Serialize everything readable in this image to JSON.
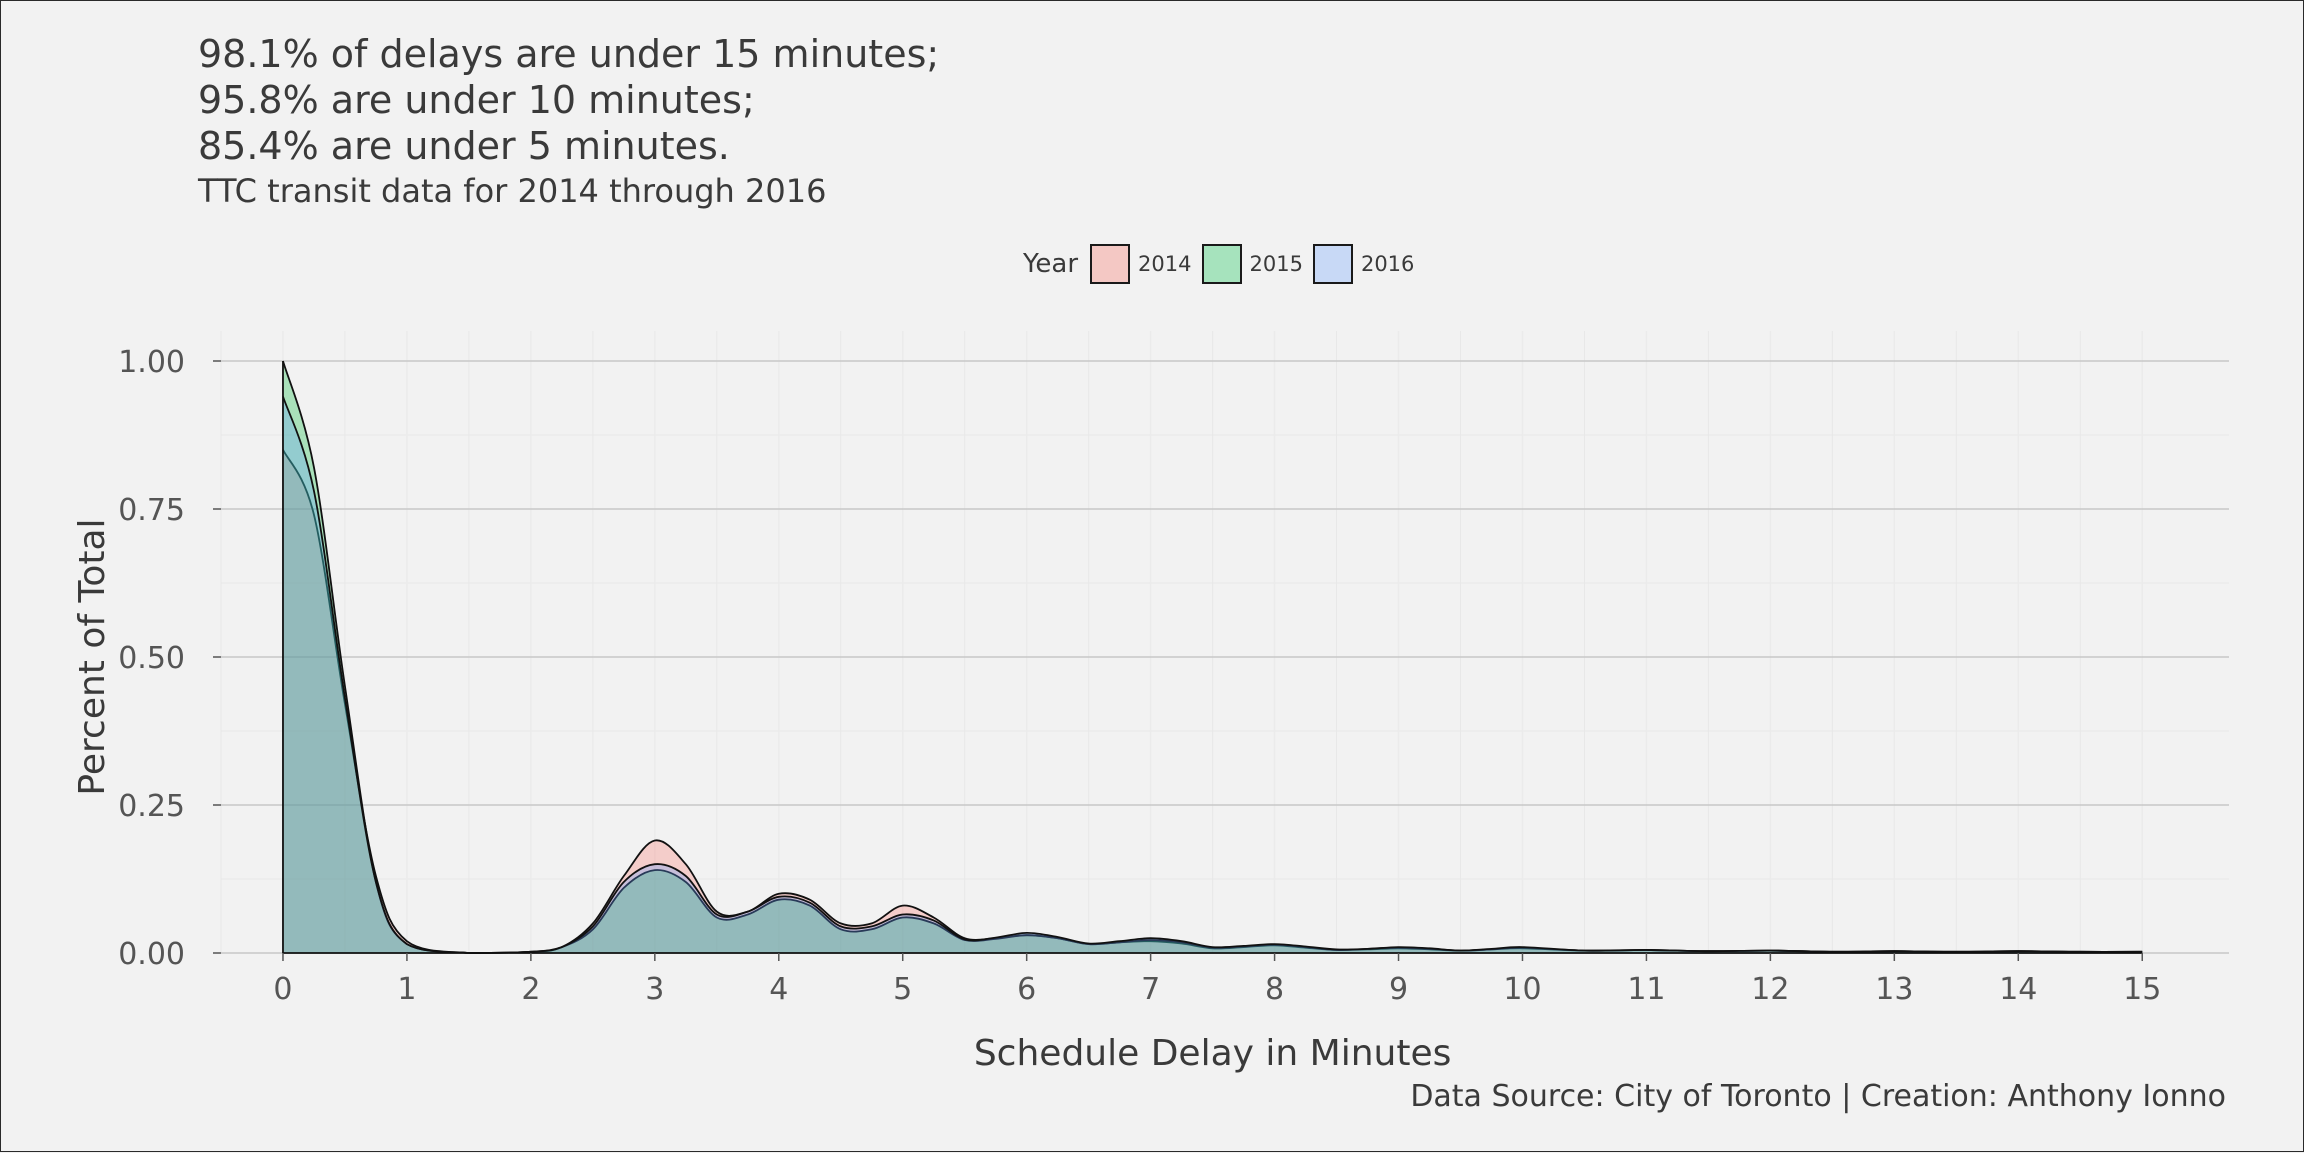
{
  "title_lines": [
    "98.1% of delays are under 15 minutes;",
    "95.8% are under 10 minutes;",
    "85.4% are under 5 minutes."
  ],
  "subtitle": "TTC transit data for 2014 through 2016",
  "caption": "Data Source: City of Toronto | Creation: Anthony Ionno",
  "legend": {
    "title": "Year",
    "items": [
      {
        "label": "2014",
        "color": "#f8766d"
      },
      {
        "label": "2015",
        "color": "#00ba38"
      },
      {
        "label": "2016",
        "color": "#619cff"
      }
    ]
  },
  "chart_data": {
    "type": "area",
    "xlabel": "Schedule Delay in Minutes",
    "ylabel": "Percent of Total",
    "xlim": [
      -0.5,
      15.7
    ],
    "ylim": [
      0,
      1.0
    ],
    "x_ticks": [
      0,
      1,
      2,
      3,
      4,
      5,
      6,
      7,
      8,
      9,
      10,
      11,
      12,
      13,
      14,
      15
    ],
    "y_ticks": [
      0,
      0.25,
      0.5,
      0.75,
      1.0
    ],
    "y_tick_labels": [
      "0.00",
      "0.25",
      "0.50",
      "0.75",
      "1.00"
    ],
    "grid": true,
    "legend_position": "top",
    "fill_opacity": 0.3,
    "series": [
      {
        "name": "2014",
        "color": "#f8766d",
        "x": [
          0,
          0.25,
          0.5,
          0.75,
          1,
          1.5,
          2,
          2.25,
          2.5,
          2.75,
          3,
          3.25,
          3.5,
          3.75,
          4,
          4.25,
          4.5,
          4.75,
          5,
          5.25,
          5.5,
          5.75,
          6,
          6.25,
          6.5,
          6.75,
          7,
          7.25,
          7.5,
          7.75,
          8,
          8.25,
          8.5,
          8.75,
          9,
          9.25,
          9.5,
          9.75,
          10,
          10.5,
          11,
          11.5,
          12,
          12.5,
          13,
          13.5,
          14,
          14.5,
          15
        ],
        "y": [
          0.85,
          0.74,
          0.42,
          0.13,
          0.02,
          0.0,
          0.002,
          0.01,
          0.05,
          0.13,
          0.19,
          0.15,
          0.07,
          0.07,
          0.1,
          0.09,
          0.05,
          0.05,
          0.08,
          0.06,
          0.025,
          0.025,
          0.03,
          0.025,
          0.015,
          0.018,
          0.02,
          0.016,
          0.008,
          0.01,
          0.013,
          0.009,
          0.005,
          0.006,
          0.008,
          0.006,
          0.004,
          0.006,
          0.008,
          0.004,
          0.005,
          0.003,
          0.004,
          0.002,
          0.003,
          0.002,
          0.003,
          0.002,
          0.002
        ]
      },
      {
        "name": "2015",
        "color": "#00ba38",
        "x": [
          0,
          0.25,
          0.5,
          0.75,
          1,
          1.5,
          2,
          2.25,
          2.5,
          2.75,
          3,
          3.25,
          3.5,
          3.75,
          4,
          4.25,
          4.5,
          4.75,
          5,
          5.25,
          5.5,
          5.75,
          6,
          6.25,
          6.5,
          6.75,
          7,
          7.25,
          7.5,
          7.75,
          8,
          8.25,
          8.5,
          8.75,
          9,
          9.25,
          9.5,
          9.75,
          10,
          10.5,
          11,
          11.5,
          12,
          12.5,
          13,
          13.5,
          14,
          14.5,
          15
        ],
        "y": [
          1.0,
          0.82,
          0.45,
          0.12,
          0.015,
          0.0,
          0.002,
          0.01,
          0.04,
          0.11,
          0.14,
          0.12,
          0.06,
          0.065,
          0.09,
          0.08,
          0.04,
          0.04,
          0.06,
          0.05,
          0.022,
          0.024,
          0.03,
          0.025,
          0.015,
          0.018,
          0.022,
          0.018,
          0.009,
          0.011,
          0.014,
          0.01,
          0.005,
          0.007,
          0.009,
          0.007,
          0.004,
          0.006,
          0.009,
          0.004,
          0.005,
          0.003,
          0.004,
          0.002,
          0.003,
          0.002,
          0.003,
          0.002,
          0.002
        ]
      },
      {
        "name": "2016",
        "color": "#619cff",
        "x": [
          0,
          0.25,
          0.5,
          0.75,
          1,
          1.5,
          2,
          2.25,
          2.5,
          2.75,
          3,
          3.25,
          3.5,
          3.75,
          4,
          4.25,
          4.5,
          4.75,
          5,
          5.25,
          5.5,
          5.75,
          6,
          6.25,
          6.5,
          6.75,
          7,
          7.25,
          7.5,
          7.75,
          8,
          8.25,
          8.5,
          8.75,
          9,
          9.25,
          9.5,
          9.75,
          10,
          10.5,
          11,
          11.5,
          12,
          12.5,
          13,
          13.5,
          14,
          14.5,
          15
        ],
        "y": [
          0.94,
          0.78,
          0.43,
          0.12,
          0.015,
          0.0,
          0.002,
          0.01,
          0.045,
          0.12,
          0.15,
          0.13,
          0.065,
          0.07,
          0.095,
          0.085,
          0.045,
          0.045,
          0.065,
          0.055,
          0.023,
          0.026,
          0.034,
          0.027,
          0.016,
          0.02,
          0.025,
          0.02,
          0.01,
          0.012,
          0.015,
          0.011,
          0.006,
          0.007,
          0.01,
          0.008,
          0.004,
          0.007,
          0.01,
          0.004,
          0.005,
          0.003,
          0.004,
          0.002,
          0.003,
          0.002,
          0.003,
          0.002,
          0.002
        ]
      }
    ]
  }
}
